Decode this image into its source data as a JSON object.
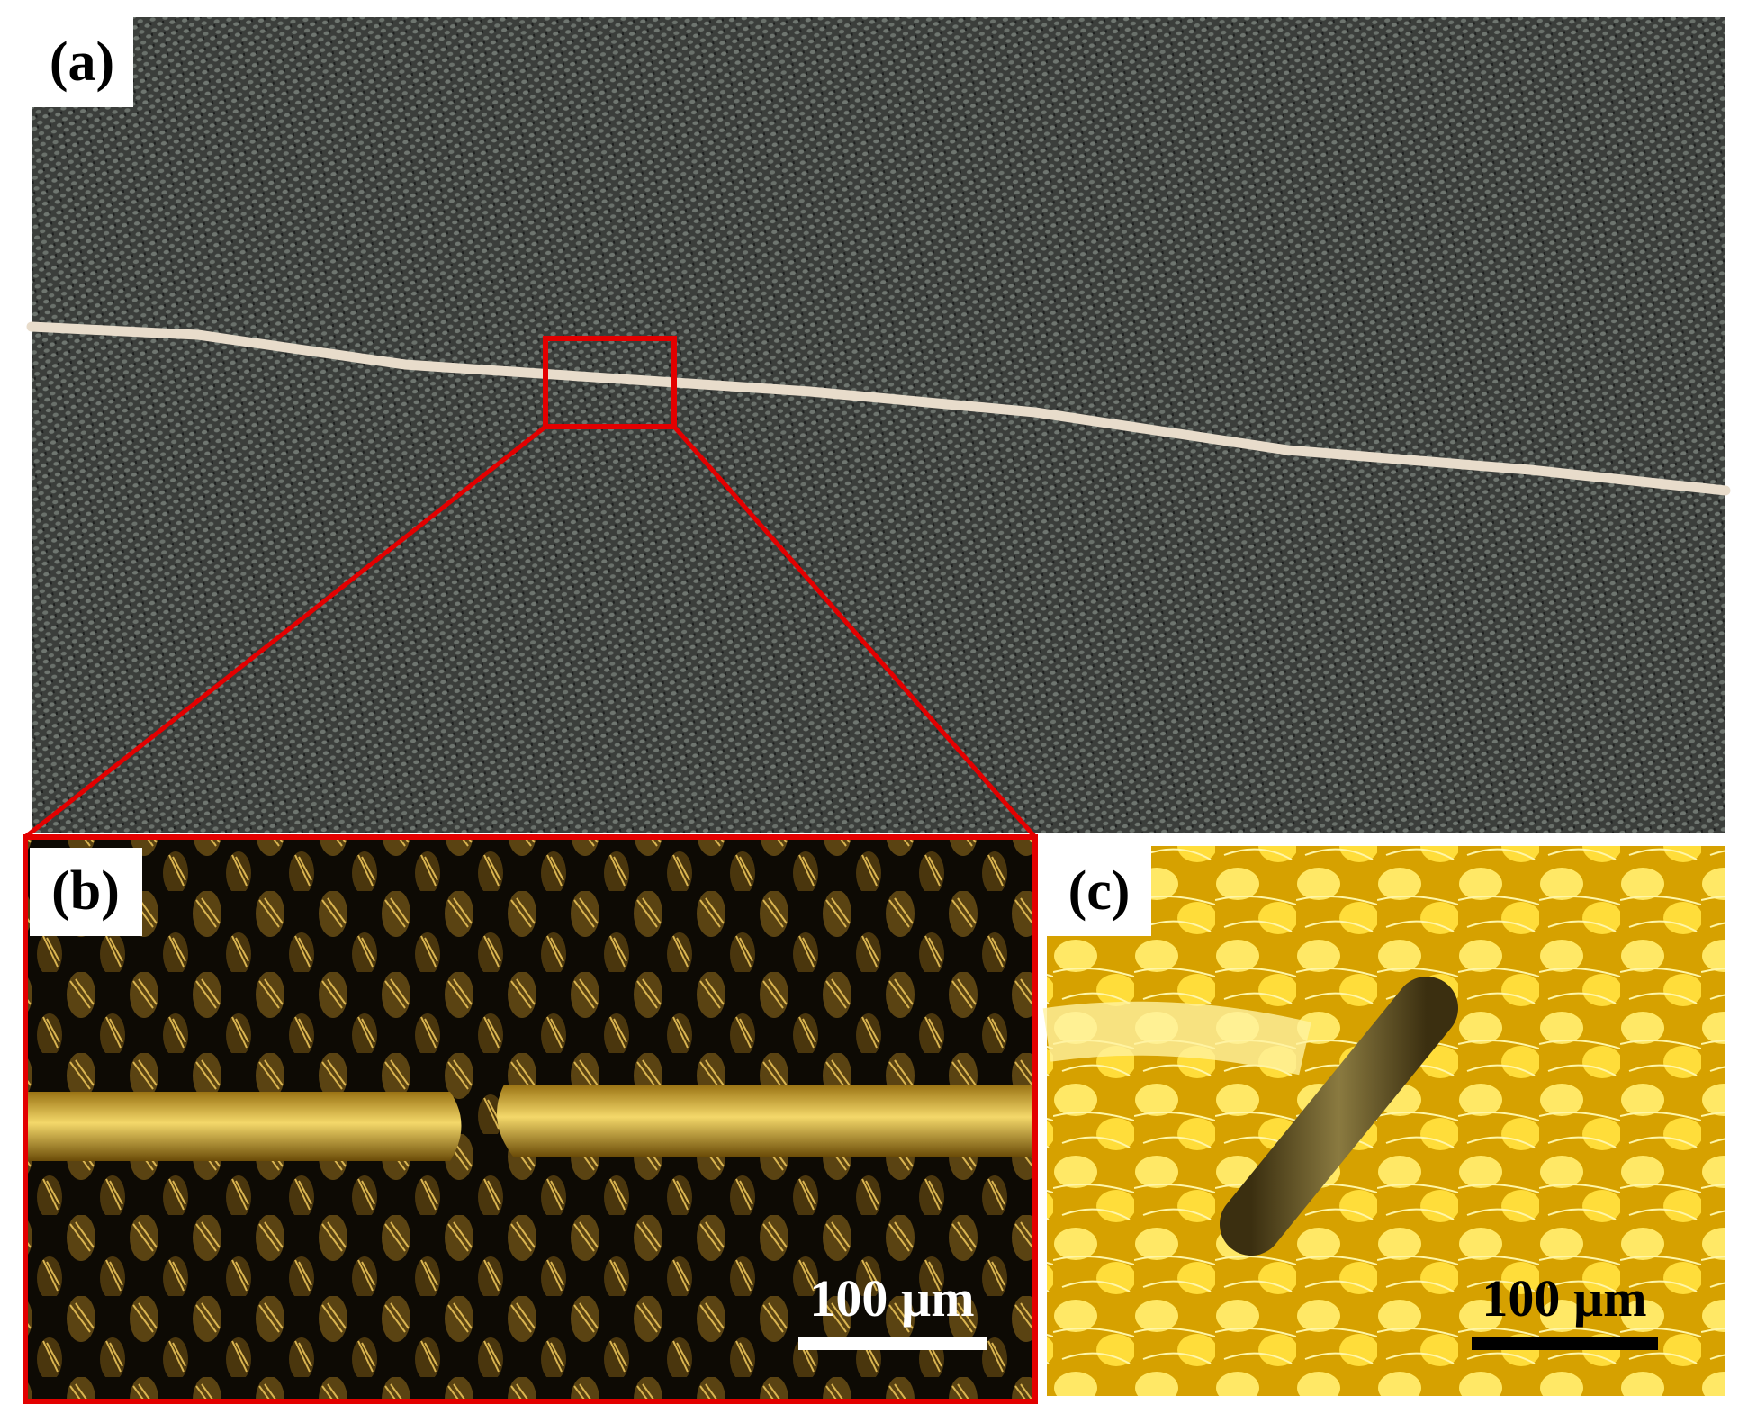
{
  "panels": [
    {
      "label": "(a)"
    },
    {
      "label": "(b)",
      "scale_bar": "100 µm"
    },
    {
      "label": "(c)",
      "scale_bar": "100 µm"
    }
  ]
}
